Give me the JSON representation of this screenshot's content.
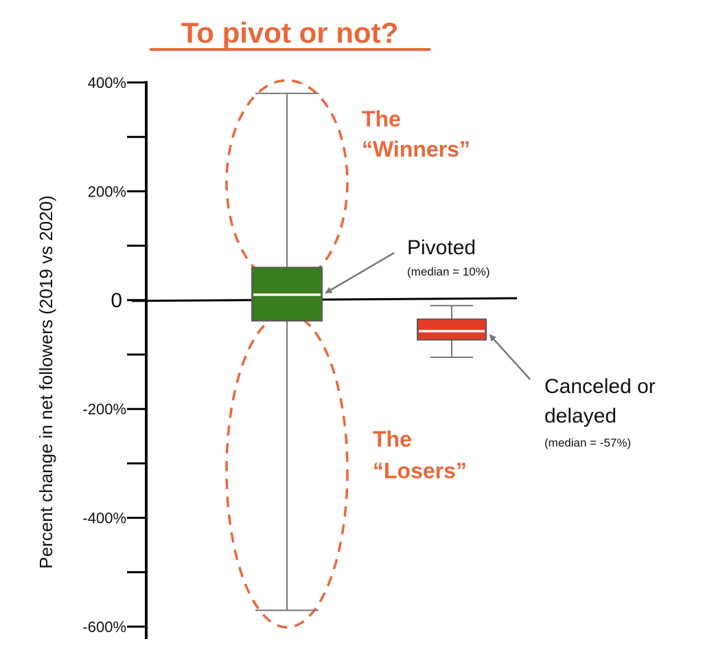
{
  "colors": {
    "accent": "#e8683a",
    "pivoted_box": "#3a7d20",
    "canceled_box": "#e53a24",
    "whisker": "#777777",
    "axis": "#000000"
  },
  "chart_data": {
    "type": "box",
    "title": "To pivot or not?",
    "ylabel": "Percent change in net followers (2019 vs 2020)",
    "ylim": [
      -600,
      400
    ],
    "yticks": [
      400,
      300,
      200,
      100,
      0,
      -100,
      -200,
      -300,
      -400,
      -500,
      -600
    ],
    "ytick_labels": [
      {
        "value": 400,
        "text": "400%"
      },
      {
        "value": 200,
        "text": "200%"
      },
      {
        "value": 0,
        "text": "0"
      },
      {
        "value": -200,
        "text": "-200%"
      },
      {
        "value": -400,
        "text": "-400%"
      },
      {
        "value": -600,
        "text": "-600%"
      }
    ],
    "series": [
      {
        "id": "pivoted",
        "label": "Pivoted",
        "median_note": "(median = 10%)",
        "median": 10,
        "q1": -38,
        "q3": 60,
        "whisker_low": -570,
        "whisker_high": 380,
        "color": "#3a7d20"
      },
      {
        "id": "canceled",
        "label_lines": [
          "Canceled or",
          "delayed"
        ],
        "median_note": "(median = -57%)",
        "median": -57,
        "q1": -73,
        "q3": -35,
        "whisker_low": -105,
        "whisker_high": -10,
        "color": "#e53a24"
      }
    ],
    "annotations": [
      {
        "id": "winners",
        "lines": [
          "The",
          "“Winners”"
        ],
        "color": "#e8683a"
      },
      {
        "id": "losers",
        "lines": [
          "The",
          "“Losers”"
        ],
        "color": "#e8683a"
      }
    ]
  }
}
